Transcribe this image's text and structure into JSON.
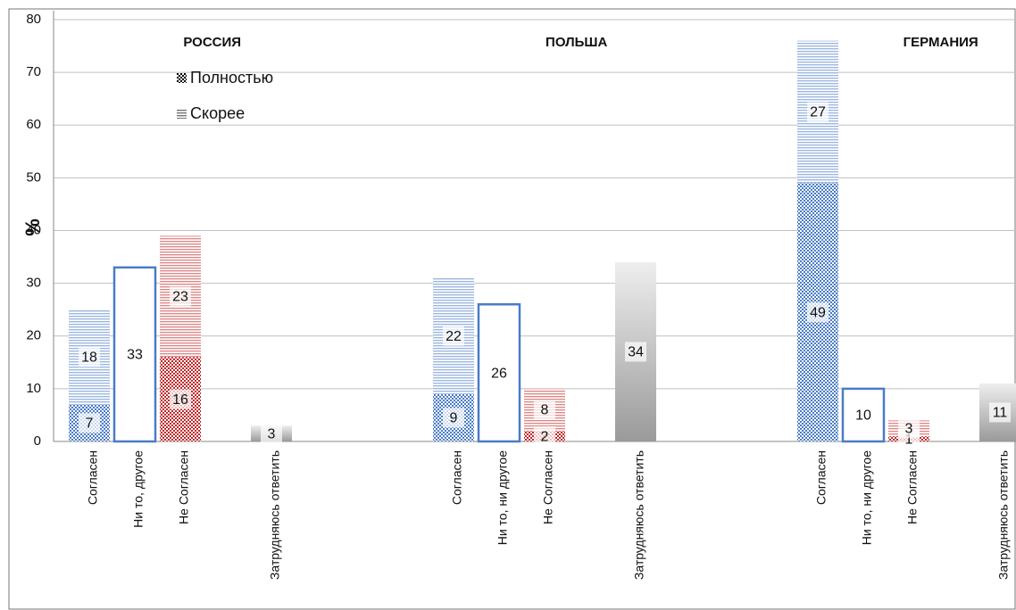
{
  "chart_data": {
    "type": "bar",
    "stacked": true,
    "groups": [
      "РОССИЯ",
      "ПОЛЬША",
      "ГЕРМАНИЯ"
    ],
    "categories": [
      "Согласен",
      "Ни то, другое",
      "Не Согласен",
      "Затрудняюсь ответить",
      "Согласен",
      "Ни то, ни другое",
      "Не Согласен",
      "Затрудняюсь ответить",
      "Согласен",
      "Ни то, ни другое",
      "Не Согласен",
      "Затрудняюсь ответить"
    ],
    "category_colors": [
      "#4a7cc7",
      "#4a7cc7",
      "#c0282a",
      "#9a9a9a",
      "#4a7cc7",
      "#4a7cc7",
      "#c0282a",
      "#9a9a9a",
      "#4a7cc7",
      "#4a7cc7",
      "#c0282a",
      "#9a9a9a"
    ],
    "series": [
      {
        "name": "Полностью",
        "style": "checker",
        "values": [
          7,
          null,
          16,
          null,
          9,
          null,
          2,
          null,
          49,
          null,
          1,
          null
        ]
      },
      {
        "name": "Скорее",
        "style": "lines",
        "values": [
          18,
          null,
          23,
          null,
          22,
          null,
          8,
          null,
          27,
          null,
          3,
          null
        ]
      },
      {
        "style": "outline",
        "values": [
          null,
          33,
          null,
          null,
          null,
          26,
          null,
          null,
          null,
          10,
          null,
          null
        ]
      },
      {
        "style": "gradient",
        "values": [
          null,
          null,
          null,
          3,
          null,
          null,
          null,
          34,
          null,
          null,
          null,
          11
        ]
      }
    ],
    "ylabel": "%",
    "ylim": [
      0,
      80
    ],
    "yticks": [
      0,
      10,
      20,
      30,
      40,
      50,
      60,
      70,
      80
    ],
    "grid": true
  }
}
